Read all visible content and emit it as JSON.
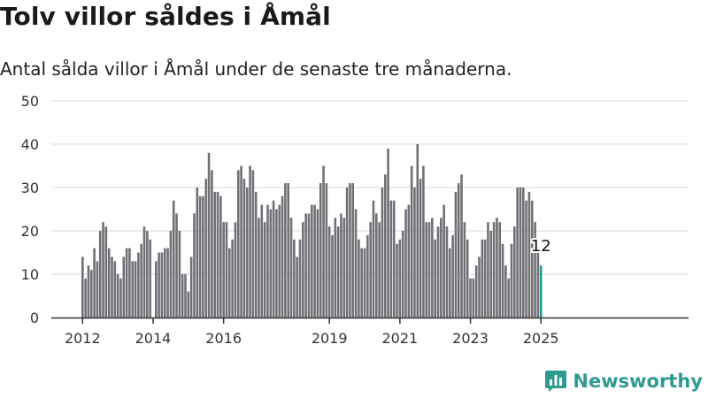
{
  "header": {
    "title": "Tolv villor såldes i Åmål",
    "subtitle": "Antal sålda villor i Åmål under de senaste tre månaderna."
  },
  "brand": {
    "name": "Newsworthy",
    "color": "#2e9a92"
  },
  "colors": {
    "bar": "#717076",
    "highlight": "#1f9a8f",
    "grid": "#d9d9d9",
    "axis": "#333333"
  },
  "chart_data": {
    "type": "bar",
    "title": "Tolv villor såldes i Åmål",
    "subtitle": "Antal sålda villor i Åmål under de senaste tre månaderna.",
    "xlabel": "",
    "ylabel": "",
    "ylim": [
      0,
      50
    ],
    "yticks": [
      0,
      10,
      20,
      30,
      40,
      50
    ],
    "xticks": [
      "2012",
      "2014",
      "2016",
      "2019",
      "2021",
      "2023",
      "2025"
    ],
    "grid": true,
    "x_start": "2012-01",
    "x_end": "2025-01",
    "values": [
      14,
      9,
      12,
      11,
      16,
      13,
      20,
      22,
      21,
      16,
      14,
      13,
      10,
      9,
      14,
      16,
      16,
      13,
      13,
      15,
      17,
      21,
      20,
      18,
      null,
      13,
      15,
      15,
      16,
      16,
      20,
      27,
      24,
      20,
      10,
      10,
      6,
      14,
      24,
      30,
      28,
      28,
      32,
      38,
      34,
      29,
      29,
      28,
      22,
      22,
      16,
      18,
      22,
      34,
      35,
      32,
      30,
      35,
      34,
      29,
      23,
      26,
      22,
      26,
      25,
      27,
      25,
      26,
      28,
      31,
      31,
      23,
      18,
      14,
      18,
      22,
      24,
      24,
      26,
      26,
      25,
      31,
      35,
      31,
      21,
      19,
      23,
      21,
      24,
      23,
      30,
      31,
      31,
      25,
      18,
      16,
      16,
      19,
      22,
      27,
      24,
      22,
      30,
      33,
      39,
      27,
      27,
      17,
      18,
      20,
      25,
      26,
      35,
      30,
      40,
      32,
      35,
      22,
      22,
      23,
      18,
      21,
      23,
      26,
      21,
      16,
      19,
      29,
      31,
      33,
      22,
      18,
      9,
      9,
      12,
      14,
      18,
      18,
      22,
      20,
      22,
      23,
      22,
      17,
      12,
      9,
      17,
      21,
      30,
      30,
      30,
      27,
      29,
      27,
      22,
      15,
      12
    ],
    "highlight_last": true,
    "last_label": "12"
  }
}
